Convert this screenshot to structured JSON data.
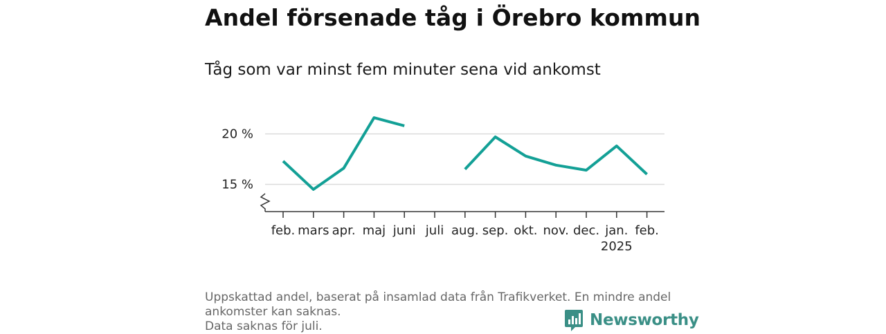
{
  "chart_data": {
    "type": "line",
    "title": "Andel försenade tåg i Örebro kommun",
    "subtitle": "Tåg som var minst fem minuter sena vid ankomst",
    "categories": [
      "feb.",
      "mars",
      "apr.",
      "maj",
      "juni",
      "juli",
      "aug.",
      "sep.",
      "okt.",
      "nov.",
      "dec.",
      "jan.",
      "feb."
    ],
    "category_sublabels": [
      "",
      "",
      "",
      "",
      "",
      "",
      "",
      "",
      "",
      "",
      "",
      "2025",
      ""
    ],
    "series": [
      {
        "values": [
          17.3,
          14.5,
          16.6,
          21.6,
          20.8,
          null,
          16.5,
          19.7,
          17.8,
          16.9,
          16.4,
          18.8,
          16.0
        ]
      }
    ],
    "y_ticks": [
      15,
      20
    ],
    "y_tick_labels": [
      "15 %",
      "20 %"
    ],
    "ylim": [
      12.3,
      22.3
    ],
    "y_axis_break": true,
    "grid": true,
    "xlabel": "",
    "ylabel": "",
    "line_color": "#13a096"
  },
  "footnote": {
    "lines": [
      "Uppskattad andel, baserat på insamlad data från Trafikverket. En mindre andel ankomster kan saknas.",
      "Data saknas för juli."
    ]
  },
  "brand": {
    "name": "Newsworthy",
    "icon": "newsworthy-logo-icon",
    "color": "#3a8f86"
  }
}
